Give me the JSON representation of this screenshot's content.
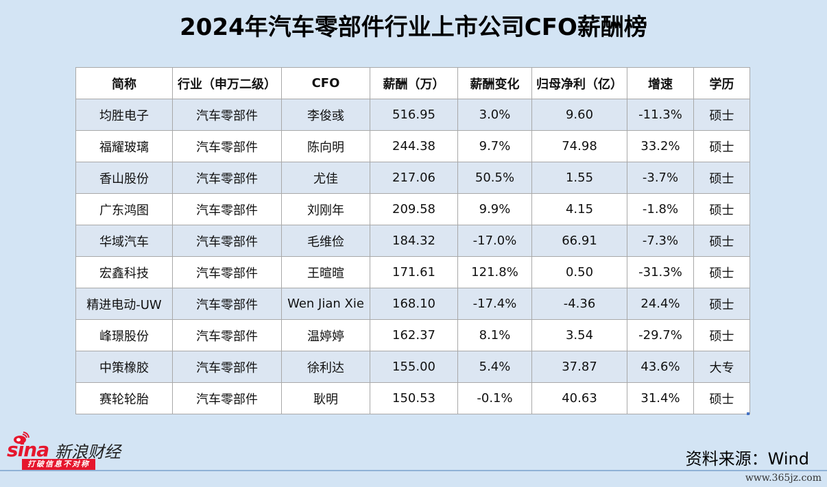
{
  "title": "2024年汽车零部件行业上市公司CFO薪酬榜",
  "table": {
    "headers": [
      "简称",
      "行业（申万二级）",
      "CFO",
      "薪酬（万）",
      "薪酬变化",
      "归母净利（亿）",
      "增速",
      "学历"
    ],
    "rows": [
      [
        "均胜电子",
        "汽车零部件",
        "李俊彧",
        "516.95",
        "3.0%",
        "9.60",
        "-11.3%",
        "硕士"
      ],
      [
        "福耀玻璃",
        "汽车零部件",
        "陈向明",
        "244.38",
        "9.7%",
        "74.98",
        "33.2%",
        "硕士"
      ],
      [
        "香山股份",
        "汽车零部件",
        "尤佳",
        "217.06",
        "50.5%",
        "1.55",
        "-3.7%",
        "硕士"
      ],
      [
        "广东鸿图",
        "汽车零部件",
        "刘刚年",
        "209.58",
        "9.9%",
        "4.15",
        "-1.8%",
        "硕士"
      ],
      [
        "华域汽车",
        "汽车零部件",
        "毛维俭",
        "184.32",
        "-17.0%",
        "66.91",
        "-7.3%",
        "硕士"
      ],
      [
        "宏鑫科技",
        "汽车零部件",
        "王暄暄",
        "171.61",
        "121.8%",
        "0.50",
        "-31.3%",
        "硕士"
      ],
      [
        "精进电动-UW",
        "汽车零部件",
        "Wen Jian Xie",
        "168.10",
        "-17.4%",
        "-4.36",
        "24.4%",
        "硕士"
      ],
      [
        "峰璟股份",
        "汽车零部件",
        "温婷婷",
        "162.37",
        "8.1%",
        "3.54",
        "-29.7%",
        "硕士"
      ],
      [
        "中策橡胶",
        "汽车零部件",
        "徐利达",
        "155.00",
        "5.4%",
        "37.87",
        "43.6%",
        "大专"
      ],
      [
        "赛轮轮胎",
        "汽车零部件",
        "耿明",
        "150.53",
        "-0.1%",
        "40.63",
        "31.4%",
        "硕士"
      ]
    ]
  },
  "logo": {
    "sina": "sina",
    "cn": "新浪财经",
    "slogan": "打破信息不对称",
    "brand_color": "#e6162d"
  },
  "source": "资料来源：Wind",
  "watermark": "www.365jz.com"
}
